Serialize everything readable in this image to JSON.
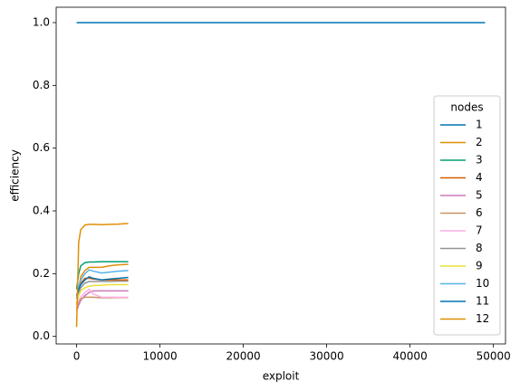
{
  "chart_data": {
    "type": "line",
    "xlabel": "exploit",
    "ylabel": "efficiency",
    "xlim": [
      -2450,
      51450
    ],
    "ylim": [
      -0.024,
      1.049
    ],
    "xticks": [
      0,
      10000,
      20000,
      30000,
      40000,
      50000
    ],
    "yticks": [
      {
        "value": 0,
        "label": "0.0"
      },
      {
        "value": 0.2,
        "label": "0.2"
      },
      {
        "value": 0.4,
        "label": "0.4"
      },
      {
        "value": 0.6,
        "label": "0.6"
      },
      {
        "value": 0.8,
        "label": "0.8"
      },
      {
        "value": 1,
        "label": "1.0"
      }
    ],
    "legend_title": "nodes",
    "legend_position": "lower right",
    "series": [
      {
        "name": "1",
        "color": "#0173b2",
        "x": [
          0,
          49000
        ],
        "values": [
          1.0,
          1.0
        ]
      },
      {
        "name": "2",
        "color": "#de8f05",
        "x": [
          0,
          250,
          500,
          1000,
          1500,
          2000,
          3000,
          4000,
          5000,
          6200
        ],
        "values": [
          0.1,
          0.15,
          0.19,
          0.21,
          0.22,
          0.22,
          0.22,
          0.225,
          0.228,
          0.23
        ]
      },
      {
        "name": "3",
        "color": "#029e73",
        "x": [
          0,
          250,
          500,
          1000,
          1500,
          2000,
          3000,
          4000,
          5000,
          6200
        ],
        "values": [
          0.15,
          0.2,
          0.225,
          0.235,
          0.237,
          0.237,
          0.238,
          0.238,
          0.238,
          0.238
        ]
      },
      {
        "name": "4",
        "color": "#d55e00",
        "x": [
          0,
          250,
          500,
          1000,
          1500,
          2000,
          3000,
          4000,
          5000,
          6200
        ],
        "values": [
          0.12,
          0.15,
          0.17,
          0.185,
          0.185,
          0.183,
          0.18,
          0.18,
          0.18,
          0.18
        ]
      },
      {
        "name": "5",
        "color": "#cc78bc",
        "x": [
          0,
          250,
          500,
          1000,
          1500,
          2000,
          3000,
          4000,
          5000,
          6200
        ],
        "values": [
          0.08,
          0.1,
          0.115,
          0.13,
          0.14,
          0.145,
          0.145,
          0.145,
          0.145,
          0.145
        ]
      },
      {
        "name": "6",
        "color": "#ca9161",
        "x": [
          0,
          250,
          500,
          1000,
          1500,
          2000,
          3000,
          4000,
          5000,
          6200
        ],
        "values": [
          0.09,
          0.11,
          0.12,
          0.125,
          0.125,
          0.125,
          0.123,
          0.123,
          0.124,
          0.124
        ]
      },
      {
        "name": "7",
        "color": "#fbafe4",
        "x": [
          0,
          250,
          500,
          1000,
          1500,
          2000,
          3000,
          4000,
          5000,
          6200
        ],
        "values": [
          0.1,
          0.115,
          0.125,
          0.14,
          0.15,
          0.135,
          0.125,
          0.125,
          0.125,
          0.125
        ]
      },
      {
        "name": "8",
        "color": "#949494",
        "x": [
          0,
          250,
          500,
          1000,
          1500,
          2000,
          3000,
          4000,
          5000,
          6200
        ],
        "values": [
          0.12,
          0.14,
          0.155,
          0.17,
          0.175,
          0.175,
          0.175,
          0.175,
          0.176,
          0.176
        ]
      },
      {
        "name": "9",
        "color": "#ece133",
        "x": [
          0,
          250,
          500,
          1000,
          1500,
          2000,
          3000,
          4000,
          5000,
          6200
        ],
        "values": [
          0.1,
          0.13,
          0.145,
          0.155,
          0.16,
          0.162,
          0.163,
          0.165,
          0.165,
          0.165
        ]
      },
      {
        "name": "10",
        "color": "#56b4e9",
        "x": [
          0,
          250,
          500,
          1000,
          1500,
          2000,
          3000,
          4000,
          5000,
          6200
        ],
        "values": [
          0.12,
          0.16,
          0.18,
          0.2,
          0.212,
          0.208,
          0.202,
          0.205,
          0.208,
          0.21
        ]
      },
      {
        "name": "11",
        "color": "#0173b2",
        "x": [
          0,
          250,
          500,
          1000,
          1500,
          2000,
          3000,
          4000,
          5000,
          6200
        ],
        "values": [
          0.13,
          0.15,
          0.165,
          0.18,
          0.19,
          0.185,
          0.18,
          0.183,
          0.185,
          0.188
        ]
      },
      {
        "name": "12",
        "color": "#de8f05",
        "x": [
          0,
          250,
          500,
          1000,
          1500,
          2000,
          3000,
          4000,
          5000,
          6200
        ],
        "values": [
          0.03,
          0.3,
          0.34,
          0.355,
          0.357,
          0.357,
          0.356,
          0.357,
          0.358,
          0.36
        ]
      }
    ]
  }
}
